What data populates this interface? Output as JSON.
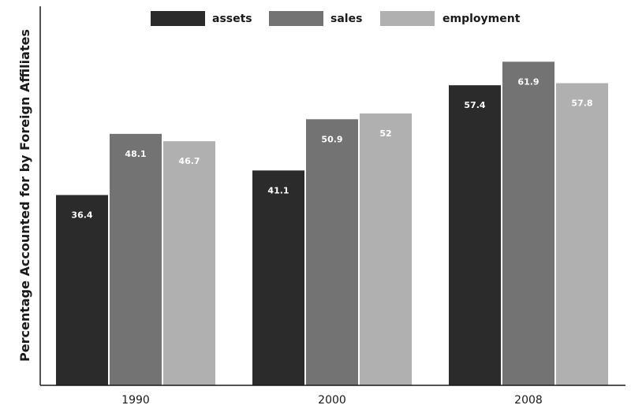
{
  "chart_data": {
    "type": "bar",
    "title": "",
    "xlabel": "",
    "ylabel": "Percentage Accounted for by Foreign Affiliates",
    "categories": [
      "1990",
      "2000",
      "2008"
    ],
    "series": [
      {
        "name": "assets",
        "color": "#2b2b2b",
        "values": [
          36.4,
          41.1,
          57.4
        ]
      },
      {
        "name": "sales",
        "color": "#737373",
        "values": [
          48.1,
          50.9,
          61.9
        ]
      },
      {
        "name": "employment",
        "color": "#b0b0b0",
        "values": [
          46.7,
          52,
          57.8
        ]
      }
    ],
    "ylim": [
      0,
      72.5
    ],
    "grid": false,
    "legend_position": "top",
    "y_ticks_shown": false
  }
}
